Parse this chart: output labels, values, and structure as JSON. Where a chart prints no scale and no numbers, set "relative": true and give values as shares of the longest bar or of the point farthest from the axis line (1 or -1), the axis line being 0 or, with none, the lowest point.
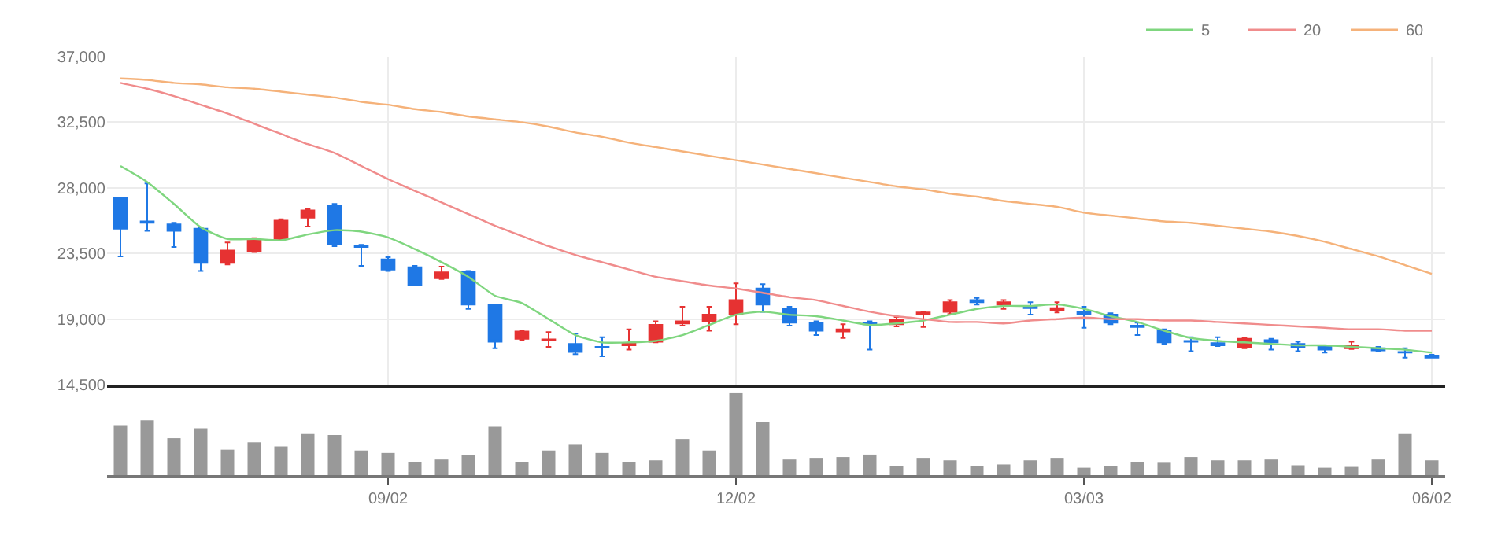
{
  "chart_data": [
    {
      "type": "candlestick",
      "ohlc": [
        [
          27350,
          27350,
          23300,
          25200
        ],
        [
          25700,
          28300,
          25050,
          25600
        ],
        [
          25500,
          25600,
          23950,
          25050
        ],
        [
          25200,
          25300,
          22300,
          22850
        ],
        [
          22850,
          24250,
          22750,
          23700
        ],
        [
          23650,
          24550,
          23600,
          24450
        ],
        [
          24500,
          25850,
          24400,
          25750
        ],
        [
          25950,
          26550,
          25350,
          26450
        ],
        [
          26800,
          26900,
          24000,
          24150
        ],
        [
          24000,
          24100,
          22650,
          23950
        ],
        [
          23100,
          23250,
          22300,
          22400
        ],
        [
          22550,
          22650,
          21300,
          21350
        ],
        [
          21800,
          22600,
          21750,
          22200
        ],
        [
          22250,
          22300,
          19700,
          20000
        ],
        [
          19950,
          19950,
          17000,
          17450
        ],
        [
          17650,
          18200,
          17550,
          18150
        ],
        [
          17550,
          18100,
          17100,
          17600
        ],
        [
          17300,
          18000,
          16600,
          16750
        ],
        [
          17100,
          17750,
          16450,
          17050
        ],
        [
          17200,
          18300,
          16900,
          17350
        ],
        [
          17450,
          18850,
          17400,
          18600
        ],
        [
          18700,
          19850,
          18550,
          18850
        ],
        [
          18850,
          19850,
          18200,
          19300
        ],
        [
          19300,
          21450,
          18650,
          20300
        ],
        [
          21100,
          21400,
          19500,
          20000
        ],
        [
          19700,
          19850,
          18550,
          18750
        ],
        [
          18750,
          18850,
          17900,
          18200
        ],
        [
          18150,
          18650,
          17700,
          18300
        ],
        [
          18750,
          18850,
          16900,
          18650
        ],
        [
          18650,
          19150,
          18500,
          18950
        ],
        [
          19300,
          19500,
          18450,
          19450
        ],
        [
          19500,
          20300,
          19350,
          20150
        ],
        [
          20300,
          20450,
          20000,
          20150
        ],
        [
          20000,
          20300,
          19700,
          20150
        ],
        [
          19850,
          20150,
          19300,
          19750
        ],
        [
          19600,
          20150,
          19450,
          19750
        ],
        [
          19500,
          19850,
          18400,
          19300
        ],
        [
          19300,
          19400,
          18650,
          18750
        ],
        [
          18550,
          18750,
          17900,
          18450
        ],
        [
          18200,
          18300,
          17300,
          17400
        ],
        [
          17500,
          17750,
          16800,
          17450
        ],
        [
          17350,
          17750,
          17150,
          17200
        ],
        [
          17050,
          17700,
          17000,
          17650
        ],
        [
          17550,
          17650,
          16900,
          17400
        ],
        [
          17300,
          17450,
          16800,
          17100
        ],
        [
          17150,
          17200,
          16700,
          16900
        ],
        [
          17000,
          17450,
          16950,
          17150
        ],
        [
          17000,
          17100,
          16800,
          16850
        ],
        [
          16750,
          17000,
          16350,
          16700
        ],
        [
          16500,
          16550,
          16350,
          16350
        ]
      ],
      "colors": [
        "#1f78e5",
        "#1f78e5",
        "#1f78e5",
        "#1f78e5",
        "#e63232",
        "#e63232",
        "#e63232",
        "#e63232",
        "#1f78e5",
        "#1f78e5",
        "#1f78e5",
        "#1f78e5",
        "#e63232",
        "#1f78e5",
        "#1f78e5",
        "#e63232",
        "#e63232",
        "#1f78e5",
        "#1f78e5",
        "#e63232",
        "#e63232",
        "#e63232",
        "#e63232",
        "#e63232",
        "#1f78e5",
        "#1f78e5",
        "#1f78e5",
        "#e63232",
        "#1f78e5",
        "#e63232",
        "#e63232",
        "#e63232",
        "#1f78e5",
        "#e63232",
        "#1f78e5",
        "#e63232",
        "#1f78e5",
        "#1f78e5",
        "#1f78e5",
        "#1f78e5",
        "#1f78e5",
        "#1f78e5",
        "#e63232",
        "#1f78e5",
        "#1f78e5",
        "#1f78e5",
        "#e63232",
        "#1f78e5",
        "#1f78e5",
        "#1f78e5"
      ],
      "series": [
        {
          "type": "line",
          "name": "5",
          "color": "#7fd67f",
          "values": [
            29500,
            28400,
            26900,
            25300,
            24500,
            24500,
            24400,
            24800,
            25100,
            25000,
            24600,
            23800,
            22900,
            21900,
            20600,
            20100,
            19000,
            17900,
            17400,
            17400,
            17500,
            17900,
            18600,
            19300,
            19500,
            19300,
            19200,
            18900,
            18600,
            18700,
            18900,
            19300,
            19700,
            19900,
            19900,
            20000,
            19700,
            19200,
            18800,
            18200,
            17700,
            17500,
            17400,
            17300,
            17200,
            17200,
            17100,
            17000,
            16900,
            16700
          ]
        },
        {
          "type": "line",
          "name": "20",
          "color": "#f08c8c",
          "values": [
            35200,
            34800,
            34300,
            33700,
            33100,
            32400,
            31700,
            31000,
            30400,
            29500,
            28600,
            27800,
            27000,
            26200,
            25400,
            24700,
            24000,
            23400,
            22900,
            22400,
            21900,
            21600,
            21300,
            21100,
            20800,
            20500,
            20300,
            19900,
            19500,
            19200,
            19000,
            18800,
            18800,
            18700,
            18900,
            19000,
            19100,
            19000,
            19000,
            18900,
            18900,
            18800,
            18700,
            18600,
            18500,
            18400,
            18300,
            18300,
            18200,
            18200
          ]
        },
        {
          "type": "line",
          "name": "60",
          "color": "#f5b27a",
          "values": [
            35500,
            35400,
            35200,
            35100,
            34900,
            34800,
            34600,
            34400,
            34200,
            33900,
            33700,
            33400,
            33200,
            32900,
            32700,
            32500,
            32200,
            31800,
            31500,
            31100,
            30800,
            30500,
            30200,
            29900,
            29600,
            29300,
            29000,
            28700,
            28400,
            28100,
            27900,
            27600,
            27400,
            27100,
            26900,
            26700,
            26300,
            26100,
            25900,
            25700,
            25600,
            25400,
            25200,
            25000,
            24700,
            24300,
            23800,
            23300,
            22700,
            22100
          ]
        }
      ],
      "ylim": [
        14500,
        37000
      ],
      "yticks": [
        {
          "value": 14500,
          "label": "14,500"
        },
        {
          "value": 19000,
          "label": "19,000"
        },
        {
          "value": 23500,
          "label": "23,500"
        },
        {
          "value": 28000,
          "label": "28,000"
        },
        {
          "value": 32500,
          "label": "32,500"
        },
        {
          "value": 37000,
          "label": "37,000"
        }
      ],
      "grid": true,
      "legend": "top right",
      "tick_labels": "y"
    },
    {
      "type": "bar",
      "relative": true,
      "color": "#999999",
      "tick_labels": "x",
      "categories": [
        null,
        null,
        null,
        null,
        null,
        null,
        null,
        null,
        null,
        null,
        "09/02",
        null,
        null,
        null,
        null,
        null,
        null,
        null,
        null,
        null,
        null,
        null,
        null,
        "12/02",
        null,
        null,
        null,
        null,
        null,
        null,
        null,
        null,
        null,
        null,
        null,
        null,
        "03/03",
        null,
        null,
        null,
        null,
        null,
        null,
        null,
        null,
        null,
        null,
        null,
        null,
        "06/02"
      ],
      "values": [
        0.61,
        0.67,
        0.45,
        0.57,
        0.31,
        0.4,
        0.35,
        0.5,
        0.49,
        0.3,
        0.27,
        0.16,
        0.19,
        0.24,
        0.59,
        0.16,
        0.3,
        0.37,
        0.27,
        0.16,
        0.18,
        0.44,
        0.3,
        1,
        0.65,
        0.19,
        0.21,
        0.22,
        0.25,
        0.11,
        0.21,
        0.18,
        0.11,
        0.13,
        0.18,
        0.21,
        0.09,
        0.11,
        0.16,
        0.15,
        0.22,
        0.18,
        0.18,
        0.19,
        0.12,
        0.09,
        0.1,
        0.19,
        0.5,
        0.18
      ]
    }
  ]
}
